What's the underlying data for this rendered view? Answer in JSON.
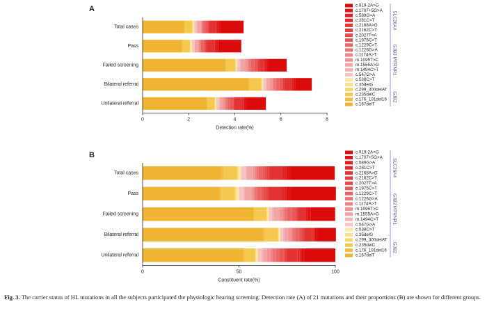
{
  "chart_data": [
    {
      "type": "stacked-barh",
      "panel": "A",
      "x_label": "Detection rate(%)",
      "categories": [
        "Total cases",
        "Pass",
        "Failed screening",
        "Bilateral referral",
        "Unilateral referral"
      ],
      "xlim": [
        0,
        8
      ],
      "xticks": [
        0,
        2,
        4,
        6,
        8
      ],
      "gene_groups": [
        "SLC26A4",
        "GJB3 MTRNR1",
        "GJB2"
      ],
      "series": [
        {
          "name": "c.167delT",
          "color": "#f0b432",
          "values": [
            1.8,
            1.7,
            3.6,
            4.6,
            2.8
          ]
        },
        {
          "name": "c.176_191del16",
          "color": "#f2bd42",
          "values": [
            0.05,
            0.05,
            0.02,
            0.05,
            0.02
          ]
        },
        {
          "name": "c.235delC",
          "color": "#f5c94f",
          "values": [
            0.3,
            0.3,
            0.4,
            0.5,
            0.3
          ]
        },
        {
          "name": "c.299_300delAT",
          "color": "#f8d66a",
          "values": [
            0.02,
            0.02,
            0.02,
            0.02,
            0.02
          ]
        },
        {
          "name": "c.35delG",
          "color": "#fbe08a",
          "values": [
            0.02,
            0.02,
            0.02,
            0.02,
            0.02
          ]
        },
        {
          "name": "c.538C>T",
          "color": "#fce8a6",
          "values": [
            0.05,
            0.05,
            0.04,
            0.05,
            0.04
          ]
        },
        {
          "name": "c.547G>A",
          "color": "#f7c4c4",
          "values": [
            0.1,
            0.1,
            0.1,
            0.1,
            0.1
          ]
        },
        {
          "name": "m.1494C>T",
          "color": "#f5b4b4",
          "values": [
            0.02,
            0.02,
            0.05,
            0.05,
            0.05
          ]
        },
        {
          "name": "m.1555A>G",
          "color": "#f3a4a4",
          "values": [
            0.15,
            0.15,
            0.2,
            0.15,
            0.1
          ]
        },
        {
          "name": "m.1095T>C",
          "color": "#f19494",
          "values": [
            0.05,
            0.05,
            0.1,
            0.1,
            0.1
          ]
        },
        {
          "name": "c.1174A>T",
          "color": "#ef8484",
          "values": [
            0.02,
            0.02,
            0.05,
            0.05,
            0.05
          ]
        },
        {
          "name": "c.1226G>A",
          "color": "#ed7474",
          "values": [
            0.05,
            0.05,
            0.1,
            0.1,
            0.1
          ]
        },
        {
          "name": "c.1229C>T",
          "color": "#eb6464",
          "values": [
            0.1,
            0.1,
            0.15,
            0.15,
            0.1
          ]
        },
        {
          "name": "c.1975C>T",
          "color": "#e95656",
          "values": [
            0.05,
            0.05,
            0.1,
            0.1,
            0.1
          ]
        },
        {
          "name": "c.2027T>A",
          "color": "#e74a4a",
          "values": [
            0.05,
            0.05,
            0.05,
            0.05,
            0.05
          ]
        },
        {
          "name": "c.2162C>T",
          "color": "#e53e3e",
          "values": [
            0.05,
            0.05,
            0.05,
            0.05,
            0.05
          ]
        },
        {
          "name": "c.2168A>G",
          "color": "#e33232",
          "values": [
            0.3,
            0.3,
            0.2,
            0.3,
            0.3
          ]
        },
        {
          "name": "c.281C>T",
          "color": "#e12727",
          "values": [
            0.05,
            0.05,
            0.05,
            0.05,
            0.05
          ]
        },
        {
          "name": "c.589G>A",
          "color": "#df1d1d",
          "values": [
            0.05,
            0.05,
            0.05,
            0.05,
            0.05
          ]
        },
        {
          "name": "c.1707+5G>A",
          "color": "#dd1414",
          "values": [
            0.1,
            0.1,
            0.1,
            0.1,
            0.1
          ]
        },
        {
          "name": "c.919-2A>G",
          "color": "#db0b0b",
          "values": [
            1.0,
            1.0,
            0.8,
            0.7,
            0.85
          ]
        }
      ]
    },
    {
      "type": "stacked-barh",
      "panel": "B",
      "x_label": "Constituent rate(%)",
      "categories": [
        "Total cases",
        "Pass",
        "Failed screening",
        "Bilateral referral",
        "Unilateral referral"
      ],
      "xlim": [
        0,
        100
      ],
      "xticks": [
        0,
        50,
        100
      ],
      "gene_groups": [
        "SLC26A4",
        "GJB3 MTRNR1",
        "GJB2"
      ],
      "series": [
        {
          "name": "c.167delT",
          "color": "#f0b432",
          "values": [
            41.1,
            39.7,
            57.6,
            62.7,
            52.3
          ]
        },
        {
          "name": "c.176_191del16",
          "color": "#f2bd42",
          "values": [
            1.1,
            1.2,
            0.3,
            0.7,
            0.4
          ]
        },
        {
          "name": "c.235delC",
          "color": "#f5c94f",
          "values": [
            6.8,
            7.0,
            6.4,
            6.8,
            5.6
          ]
        },
        {
          "name": "c.299_300delAT",
          "color": "#f8d66a",
          "values": [
            0.5,
            0.5,
            0.3,
            0.3,
            0.4
          ]
        },
        {
          "name": "c.35delG",
          "color": "#fbe08a",
          "values": [
            0.5,
            0.5,
            0.3,
            0.3,
            0.4
          ]
        },
        {
          "name": "c.538C>T",
          "color": "#fce8a6",
          "values": [
            1.1,
            1.2,
            0.6,
            0.7,
            0.7
          ]
        },
        {
          "name": "c.547G>A",
          "color": "#f7c4c4",
          "values": [
            2.3,
            2.3,
            1.6,
            1.4,
            1.9
          ]
        },
        {
          "name": "m.1494C>T",
          "color": "#f5b4b4",
          "values": [
            0.5,
            0.5,
            0.8,
            0.7,
            0.9
          ]
        },
        {
          "name": "m.1555A>G",
          "color": "#f3a4a4",
          "values": [
            3.4,
            3.5,
            3.2,
            2.0,
            1.9
          ]
        },
        {
          "name": "m.1095T>C",
          "color": "#f19494",
          "values": [
            1.1,
            1.2,
            1.6,
            1.4,
            1.9
          ]
        },
        {
          "name": "c.1174A>T",
          "color": "#ef8484",
          "values": [
            0.5,
            0.5,
            0.8,
            0.7,
            0.9
          ]
        },
        {
          "name": "c.1226G>A",
          "color": "#ed7474",
          "values": [
            1.1,
            1.2,
            1.6,
            1.4,
            1.9
          ]
        },
        {
          "name": "c.1229C>T",
          "color": "#eb6464",
          "values": [
            2.3,
            2.3,
            2.4,
            2.0,
            1.9
          ]
        },
        {
          "name": "c.1975C>T",
          "color": "#e95656",
          "values": [
            1.1,
            1.2,
            1.6,
            1.4,
            1.9
          ]
        },
        {
          "name": "c.2027T>A",
          "color": "#e74a4a",
          "values": [
            1.1,
            1.2,
            0.8,
            0.7,
            0.9
          ]
        },
        {
          "name": "c.2162C>T",
          "color": "#e53e3e",
          "values": [
            1.1,
            1.2,
            0.8,
            0.7,
            0.9
          ]
        },
        {
          "name": "c.2168A>G",
          "color": "#e33232",
          "values": [
            6.8,
            7.0,
            3.2,
            4.1,
            5.6
          ]
        },
        {
          "name": "c.281C>T",
          "color": "#e12727",
          "values": [
            1.1,
            1.2,
            0.8,
            0.7,
            0.9
          ]
        },
        {
          "name": "c.589G>A",
          "color": "#df1d1d",
          "values": [
            1.1,
            1.2,
            0.8,
            0.7,
            0.9
          ]
        },
        {
          "name": "c.1707+5G>A",
          "color": "#dd1414",
          "values": [
            2.3,
            2.3,
            1.6,
            1.4,
            1.9
          ]
        },
        {
          "name": "c.919-2A>G",
          "color": "#db0b0b",
          "values": [
            22.8,
            23.4,
            12.8,
            9.5,
            15.9
          ]
        }
      ]
    }
  ],
  "caption": {
    "label": "Fig. 3.",
    "text": "The carrier status of HL mutations in all the subjects participated the physiologic hearing screening. Detection rate (A) of 21 mutations and their proportions (B) are shown for different groups."
  }
}
